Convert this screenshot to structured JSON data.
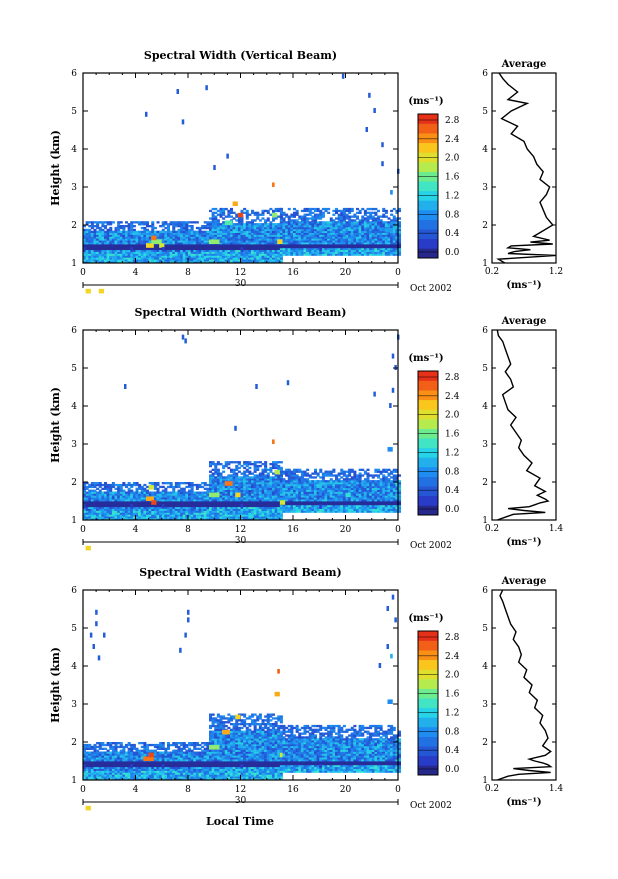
{
  "figure": {
    "xlabel_bottom": "Local Time",
    "colorbar_unit": "(ms⁻¹)",
    "date_day": "30",
    "date_suffix": "Oct 2002",
    "avg_xlabel": "(ms⁻¹)"
  },
  "chart_data": [
    {
      "type": "heatmap",
      "title": "Spectral Width (Vertical Beam)",
      "ylabel": "Height (km)",
      "xticks": [
        "0",
        "4",
        "8",
        "12",
        "16",
        "20",
        "0"
      ],
      "yticks": [
        "1",
        "2",
        "3",
        "4",
        "5",
        "6"
      ],
      "xlim": [
        0,
        24
      ],
      "ylim": [
        1,
        6
      ],
      "colorbar_ticks": [
        "0.0",
        "0.4",
        "0.8",
        "1.2",
        "1.6",
        "2.0",
        "2.4",
        "2.8"
      ],
      "colorbar_range": [
        0,
        3.0
      ],
      "cells": [
        [
          0,
          0.2,
          1.3,
          0.3
        ],
        [
          0.2,
          0.4,
          0.2,
          2.2
        ],
        [
          1.2,
          0.4,
          0.2,
          2.2
        ],
        [
          3.6,
          0.2,
          1.3,
          0.3
        ],
        [
          4.8,
          0.6,
          1.4,
          2.2
        ],
        [
          5.2,
          0.8,
          1.5,
          1.8
        ],
        [
          5.2,
          0.4,
          1.6,
          2.6
        ],
        [
          5.8,
          0.4,
          1.4,
          2.0
        ],
        [
          6,
          0.2,
          1.3,
          0.3
        ],
        [
          9.6,
          0.8,
          1.5,
          1.8
        ],
        [
          10.8,
          0.6,
          2,
          1.6
        ],
        [
          11.4,
          0.4,
          2.5,
          2.4
        ],
        [
          11.8,
          0.4,
          2.2,
          2.8
        ],
        [
          12,
          0.2,
          1.3,
          0.3
        ],
        [
          14.4,
          0.4,
          2.2,
          1.8
        ],
        [
          14.4,
          0.2,
          3.0,
          2.6
        ],
        [
          14.8,
          0.4,
          1.5,
          2.2
        ],
        [
          18,
          0.2,
          1.3,
          0.3
        ],
        [
          23,
          0.6,
          1.8,
          1.0
        ],
        [
          23.4,
          0.2,
          2.8,
          0.9
        ]
      ],
      "band": [
        [
          0,
          9.6,
          1.0,
          2.1
        ],
        [
          9.6,
          15,
          1.0,
          2.4
        ],
        [
          15,
          24,
          1.2,
          2.4
        ]
      ],
      "scatter": [
        [
          7.2,
          5.5
        ],
        [
          7.6,
          4.7
        ],
        [
          4.8,
          4.9
        ],
        [
          19.8,
          5.9
        ],
        [
          21.8,
          5.4
        ],
        [
          21.6,
          4.5
        ],
        [
          22.2,
          5.0
        ],
        [
          22.8,
          4.1
        ],
        [
          22.8,
          3.6
        ],
        [
          24,
          3.4
        ],
        [
          10,
          3.5
        ],
        [
          11,
          3.8
        ],
        [
          9.4,
          5.6
        ]
      ],
      "avg": {
        "xticks": [
          "0.2",
          "1.2"
        ],
        "xlim": [
          0.2,
          1.2
        ],
        "yticks": [
          "1",
          "2",
          "3",
          "4",
          "5",
          "6"
        ],
        "ylim": [
          1,
          6
        ],
        "x": [
          0.31,
          0.37,
          0.45,
          0.6,
          0.45,
          0.75,
          0.5,
          0.35,
          0.6,
          0.5,
          0.7,
          0.75,
          0.85,
          0.9,
          1.0,
          0.95,
          1.1,
          1.05,
          0.95,
          1.0,
          1.05,
          1.15,
          0.95,
          0.85,
          1.1,
          0.8,
          1.15,
          0.5,
          0.45,
          0.8,
          0.55,
          0.45,
          1.2,
          0.3,
          0.4
        ],
        "y": [
          6.0,
          5.85,
          5.7,
          5.5,
          5.3,
          5.2,
          5.0,
          4.8,
          4.6,
          4.4,
          4.2,
          4.0,
          3.8,
          3.6,
          3.4,
          3.2,
          3.0,
          2.8,
          2.6,
          2.4,
          2.2,
          2.0,
          1.8,
          1.7,
          1.6,
          1.55,
          1.5,
          1.45,
          1.4,
          1.35,
          1.3,
          1.25,
          1.2,
          1.1,
          1.0
        ]
      }
    },
    {
      "type": "heatmap",
      "title": "Spectral Width (Northward Beam)",
      "ylabel": "Height (km)",
      "xticks": [
        "0",
        "4",
        "8",
        "12",
        "16",
        "20",
        "0"
      ],
      "yticks": [
        "1",
        "2",
        "3",
        "4",
        "5",
        "6"
      ],
      "xlim": [
        0,
        24
      ],
      "ylim": [
        1,
        6
      ],
      "colorbar_ticks": [
        "0.0",
        "0.4",
        "0.8",
        "1.2",
        "1.6",
        "2.0",
        "2.4",
        "2.8"
      ],
      "colorbar_range": [
        0,
        3.0
      ],
      "cells": [
        [
          0,
          0.2,
          1.3,
          0.3
        ],
        [
          0.2,
          0.4,
          0.2,
          2.2
        ],
        [
          3.6,
          0.2,
          1.3,
          0.3
        ],
        [
          4.8,
          0.6,
          1.5,
          2.4
        ],
        [
          5,
          0.4,
          1.8,
          2.0
        ],
        [
          5.2,
          0.4,
          1.4,
          2.8
        ],
        [
          6,
          0.2,
          1.3,
          0.3
        ],
        [
          9.6,
          0.8,
          1.6,
          1.8
        ],
        [
          10.8,
          0.6,
          1.9,
          2.6
        ],
        [
          11.6,
          0.4,
          1.6,
          2.2
        ],
        [
          12,
          0.2,
          1.3,
          0.3
        ],
        [
          14.6,
          0.4,
          2.2,
          1.9
        ],
        [
          14.4,
          0.2,
          3.0,
          2.6
        ],
        [
          15,
          0.4,
          1.4,
          2.0
        ],
        [
          18,
          0.2,
          1.3,
          0.3
        ],
        [
          20,
          0.4,
          1.6,
          1.4
        ],
        [
          23.2,
          0.4,
          2.8,
          0.9
        ],
        [
          23.4,
          0.2,
          1.6,
          1.2
        ]
      ],
      "band": [
        [
          0,
          9.6,
          1.0,
          2.0
        ],
        [
          9.6,
          15,
          1.0,
          2.5
        ],
        [
          15,
          24,
          1.2,
          2.3
        ]
      ],
      "scatter": [
        [
          7.6,
          5.8
        ],
        [
          7.8,
          5.7
        ],
        [
          3.2,
          4.5
        ],
        [
          13.2,
          4.5
        ],
        [
          15.6,
          4.6
        ],
        [
          23.6,
          5.3
        ],
        [
          23.8,
          5.0
        ],
        [
          23.6,
          4.4
        ],
        [
          22.2,
          4.3
        ],
        [
          23.4,
          4.0
        ],
        [
          24,
          5.8
        ],
        [
          11.6,
          3.4
        ]
      ],
      "avg": {
        "xticks": [
          "0.2",
          "1.4"
        ],
        "xlim": [
          0.2,
          1.4
        ],
        "yticks": [
          "1",
          "2",
          "3",
          "4",
          "5",
          "6"
        ],
        "ylim": [
          1,
          6
        ],
        "x": [
          0.3,
          0.32,
          0.4,
          0.45,
          0.5,
          0.55,
          0.45,
          0.55,
          0.6,
          0.4,
          0.45,
          0.5,
          0.65,
          0.55,
          0.65,
          0.75,
          0.7,
          0.8,
          0.95,
          0.85,
          1.1,
          1.0,
          1.2,
          1.05,
          1.2,
          1.25,
          1.1,
          1.0,
          0.9,
          0.5,
          0.8,
          1.2,
          0.6,
          0.5,
          0.3
        ],
        "y": [
          6.0,
          5.85,
          5.7,
          5.5,
          5.3,
          5.1,
          4.9,
          4.7,
          4.5,
          4.3,
          4.1,
          3.9,
          3.7,
          3.5,
          3.3,
          3.1,
          2.9,
          2.7,
          2.5,
          2.3,
          2.1,
          1.9,
          1.75,
          1.65,
          1.55,
          1.5,
          1.45,
          1.4,
          1.35,
          1.3,
          1.25,
          1.2,
          1.15,
          1.1,
          1.0
        ]
      }
    },
    {
      "type": "heatmap",
      "title": "Spectral Width (Eastward Beam)",
      "ylabel": "Height (km)",
      "xticks": [
        "0",
        "4",
        "8",
        "12",
        "16",
        "20",
        "0"
      ],
      "yticks": [
        "1",
        "2",
        "3",
        "4",
        "5",
        "6"
      ],
      "xlim": [
        0,
        24
      ],
      "ylim": [
        1,
        6
      ],
      "colorbar_ticks": [
        "0.0",
        "0.4",
        "0.8",
        "1.2",
        "1.6",
        "2.0",
        "2.4",
        "2.8"
      ],
      "colorbar_range": [
        0,
        3.0
      ],
      "cells": [
        [
          0,
          0.2,
          1.3,
          0.3
        ],
        [
          0.2,
          0.4,
          0.2,
          2.2
        ],
        [
          3.6,
          0.2,
          1.3,
          0.3
        ],
        [
          4.6,
          0.8,
          1.5,
          2.6
        ],
        [
          5,
          0.4,
          1.6,
          2.8
        ],
        [
          6,
          0.2,
          1.3,
          0.3
        ],
        [
          9.6,
          0.8,
          1.8,
          1.8
        ],
        [
          10.6,
          0.6,
          2.2,
          2.4
        ],
        [
          11.6,
          0.4,
          2.6,
          2.2
        ],
        [
          12,
          0.2,
          1.3,
          0.3
        ],
        [
          14.6,
          0.4,
          3.2,
          2.4
        ],
        [
          14.8,
          0.2,
          3.8,
          2.7
        ],
        [
          15,
          0.2,
          1.6,
          2.0
        ],
        [
          18,
          0.2,
          1.3,
          0.3
        ],
        [
          23.2,
          0.4,
          3.0,
          0.9
        ],
        [
          23.4,
          0.2,
          4.2,
          1.1
        ]
      ],
      "band": [
        [
          0,
          9.6,
          1.0,
          2.0
        ],
        [
          9.6,
          15,
          1.0,
          2.7
        ],
        [
          15,
          24,
          1.2,
          2.4
        ]
      ],
      "scatter": [
        [
          1.0,
          5.4
        ],
        [
          1.0,
          5.1
        ],
        [
          0.8,
          4.5
        ],
        [
          1.6,
          4.8
        ],
        [
          1.2,
          4.2
        ],
        [
          0.6,
          4.8
        ],
        [
          8.0,
          5.4
        ],
        [
          8.0,
          5.2
        ],
        [
          7.4,
          4.4
        ],
        [
          7.8,
          4.8
        ],
        [
          23.6,
          5.8
        ],
        [
          23.2,
          5.5
        ],
        [
          23.8,
          5.2
        ],
        [
          22.6,
          4.0
        ],
        [
          23.2,
          4.5
        ],
        [
          19.6,
          2.0
        ],
        [
          21.8,
          2.0
        ]
      ],
      "avg": {
        "xticks": [
          "0.2",
          "1.4"
        ],
        "xlim": [
          0.2,
          1.4
        ],
        "yticks": [
          "1",
          "2",
          "3",
          "4",
          "5",
          "6"
        ],
        "ylim": [
          1,
          6
        ],
        "x": [
          0.4,
          0.35,
          0.4,
          0.45,
          0.5,
          0.55,
          0.65,
          0.6,
          0.7,
          0.75,
          0.7,
          0.85,
          0.8,
          0.95,
          0.9,
          1.05,
          1.0,
          1.15,
          1.1,
          1.2,
          1.25,
          1.15,
          1.3,
          1.2,
          0.9,
          1.0,
          1.15,
          1.25,
          1.3,
          0.6,
          0.9,
          1.3,
          0.7,
          0.5,
          0.3
        ],
        "y": [
          6.0,
          5.85,
          5.7,
          5.5,
          5.3,
          5.1,
          4.9,
          4.7,
          4.5,
          4.3,
          4.1,
          3.9,
          3.7,
          3.5,
          3.3,
          3.1,
          2.9,
          2.7,
          2.5,
          2.3,
          2.1,
          1.9,
          1.75,
          1.65,
          1.55,
          1.5,
          1.45,
          1.4,
          1.35,
          1.3,
          1.25,
          1.2,
          1.15,
          1.1,
          1.0
        ]
      }
    }
  ]
}
